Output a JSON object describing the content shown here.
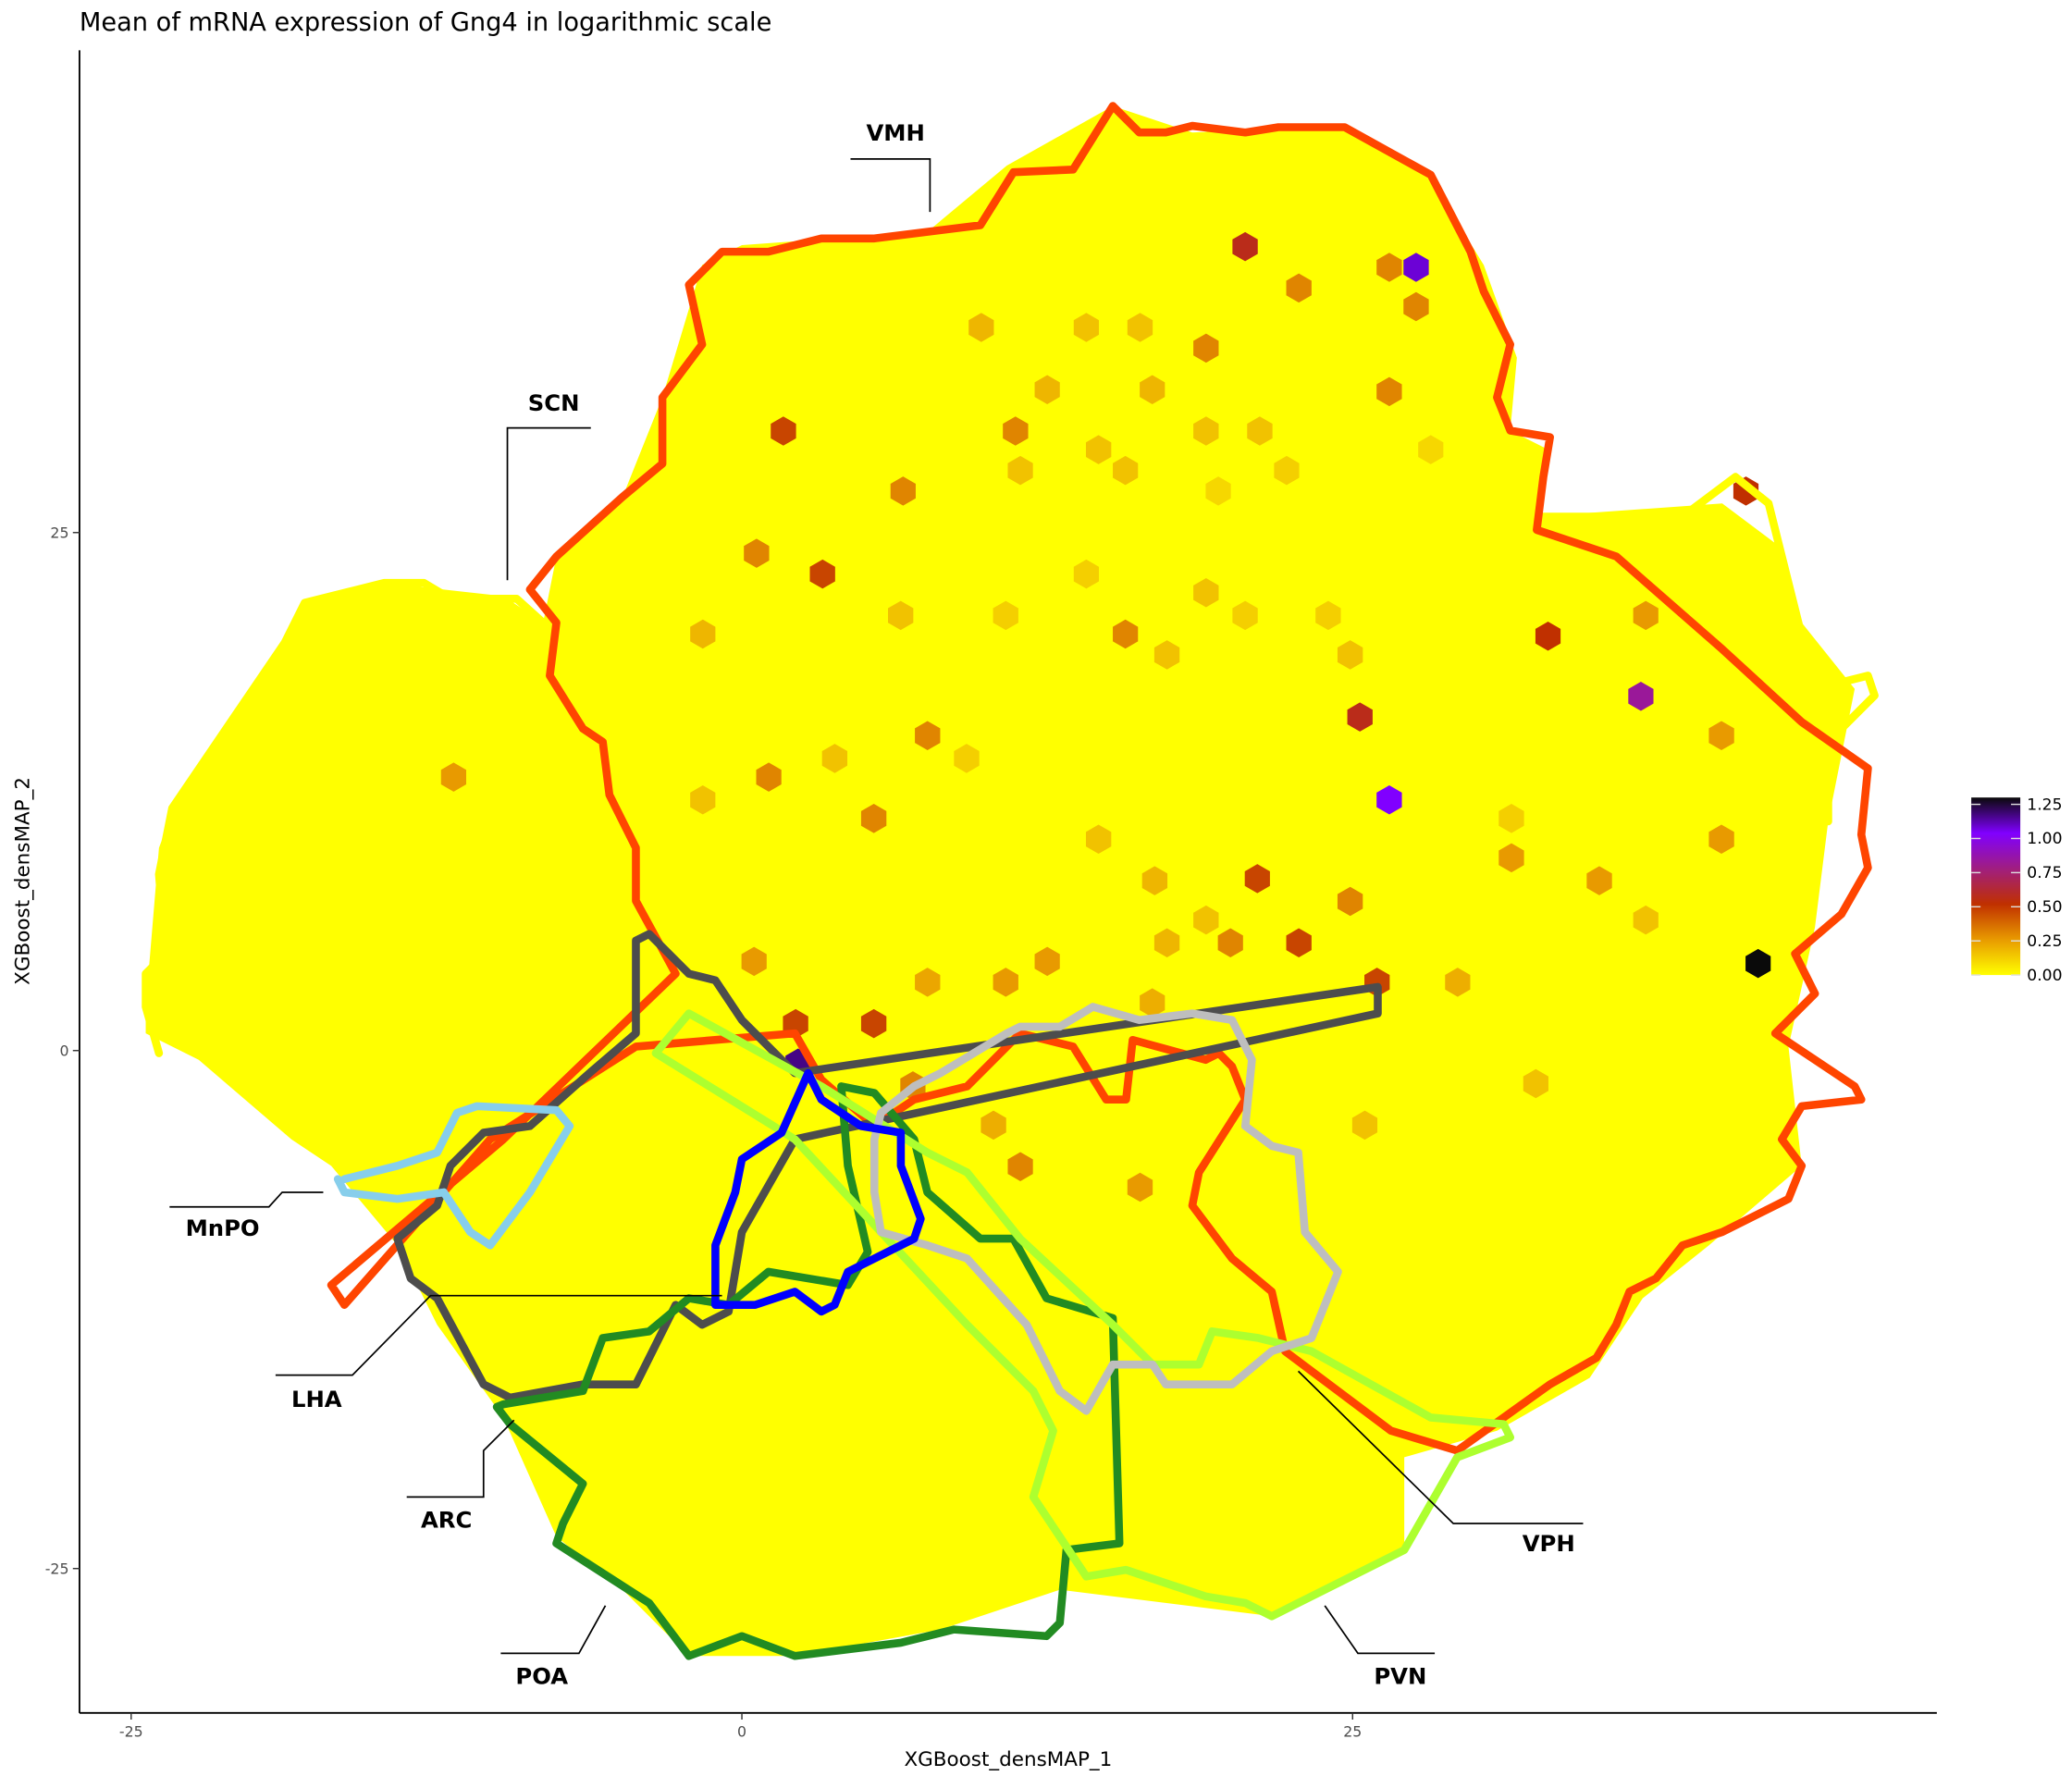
{
  "chart_data": {
    "type": "heatmap",
    "subtype": "hexbin",
    "title": "Mean of mRNA expression of Gng4 in logarithmic scale",
    "xlabel": "XGBoost_densMAP_1",
    "ylabel": "XGBoost_densMAP_2",
    "xticks": [
      -25,
      0,
      25
    ],
    "yticks": [
      25,
      0,
      -25
    ],
    "xlim": [
      -27,
      49
    ],
    "ylim": [
      -32,
      48
    ],
    "grid": false,
    "base_fill": "#FFFF00",
    "colorbar": {
      "ticks": [
        "0.00",
        "0.25",
        "0.50",
        "0.75",
        "1.00",
        "1.25"
      ],
      "range": [
        0,
        1.3
      ],
      "colors": [
        "#FFFF00",
        "#E89A00",
        "#C03000",
        "#A01E80",
        "#8000FF",
        "#0A0A0A"
      ],
      "placement": "right"
    },
    "regions": [
      {
        "label": "VMH",
        "color": "#FF4500"
      },
      {
        "label": "SCN",
        "color": "#FFFF00"
      },
      {
        "label": "MnPO",
        "color": "#87CEEB"
      },
      {
        "label": "LHA",
        "color": "#4D4D4D"
      },
      {
        "label": "ARC",
        "color": "#0000FF"
      },
      {
        "label": "POA",
        "color": "#228B22"
      },
      {
        "label": "PVN",
        "color": "#ADFF2F"
      },
      {
        "label": "VPH",
        "color": "#BEBEBE"
      }
    ],
    "hexes": [
      {
        "x": 41.6,
        "y": 4.2,
        "v": 1.3
      },
      {
        "x": 27.6,
        "y": 37.8,
        "v": 1.05
      },
      {
        "x": 26.5,
        "y": 12.1,
        "v": 1.0
      },
      {
        "x": 36.8,
        "y": 17.1,
        "v": 0.8
      },
      {
        "x": 2.3,
        "y": -0.6,
        "v": 1.15
      },
      {
        "x": 20.6,
        "y": 38.8,
        "v": 0.55
      },
      {
        "x": 41.1,
        "y": 27.0,
        "v": 0.5
      },
      {
        "x": 33.0,
        "y": 20.0,
        "v": 0.5
      },
      {
        "x": 25.3,
        "y": 16.1,
        "v": 0.55
      },
      {
        "x": 1.7,
        "y": 29.9,
        "v": 0.45
      },
      {
        "x": 3.3,
        "y": 23.0,
        "v": 0.45
      },
      {
        "x": 21.1,
        "y": 8.3,
        "v": 0.45
      },
      {
        "x": 22.8,
        "y": 5.2,
        "v": 0.45
      },
      {
        "x": 2.2,
        "y": 1.3,
        "v": 0.45
      },
      {
        "x": 5.4,
        "y": 1.3,
        "v": 0.45
      },
      {
        "x": 26.0,
        "y": 3.3,
        "v": 0.45
      },
      {
        "x": 26.5,
        "y": 37.8,
        "v": 0.3
      },
      {
        "x": 22.8,
        "y": 36.8,
        "v": 0.3
      },
      {
        "x": 27.6,
        "y": 35.9,
        "v": 0.3
      },
      {
        "x": 11.2,
        "y": 29.9,
        "v": 0.3
      },
      {
        "x": 6.6,
        "y": 27.0,
        "v": 0.3
      },
      {
        "x": 26.5,
        "y": 31.8,
        "v": 0.3
      },
      {
        "x": 19.0,
        "y": 33.9,
        "v": 0.3
      },
      {
        "x": 0.6,
        "y": 24.0,
        "v": 0.3
      },
      {
        "x": 15.7,
        "y": 20.1,
        "v": 0.3
      },
      {
        "x": 7.6,
        "y": 15.2,
        "v": 0.3
      },
      {
        "x": 1.1,
        "y": 13.2,
        "v": 0.3
      },
      {
        "x": 5.4,
        "y": 11.2,
        "v": 0.3
      },
      {
        "x": 20.0,
        "y": 5.2,
        "v": 0.3
      },
      {
        "x": 24.9,
        "y": 7.2,
        "v": 0.3
      },
      {
        "x": 40.1,
        "y": 10.2,
        "v": 0.25
      },
      {
        "x": 31.5,
        "y": 9.3,
        "v": 0.25
      },
      {
        "x": 35.1,
        "y": 8.2,
        "v": 0.25
      },
      {
        "x": -11.8,
        "y": 13.2,
        "v": 0.25
      },
      {
        "x": 11.4,
        "y": -5.6,
        "v": 0.3
      },
      {
        "x": 16.3,
        "y": -6.6,
        "v": 0.25
      },
      {
        "x": 29.3,
        "y": 3.3,
        "v": 0.2
      },
      {
        "x": 32.5,
        "y": -1.6,
        "v": 0.15
      },
      {
        "x": 25.5,
        "y": -3.6,
        "v": 0.15
      },
      {
        "x": 40.1,
        "y": 15.2,
        "v": 0.25
      },
      {
        "x": 37.0,
        "y": 21.0,
        "v": 0.25
      },
      {
        "x": 9.8,
        "y": 34.9,
        "v": 0.18
      },
      {
        "x": 14.1,
        "y": 34.9,
        "v": 0.15
      },
      {
        "x": 16.3,
        "y": 34.9,
        "v": 0.15
      },
      {
        "x": 12.5,
        "y": 31.9,
        "v": 0.18
      },
      {
        "x": 16.8,
        "y": 31.9,
        "v": 0.18
      },
      {
        "x": 14.6,
        "y": 29.0,
        "v": 0.15
      },
      {
        "x": 11.4,
        "y": 28.0,
        "v": 0.15
      },
      {
        "x": 19.0,
        "y": 29.9,
        "v": 0.15
      },
      {
        "x": 21.2,
        "y": 29.9,
        "v": 0.15
      },
      {
        "x": 22.3,
        "y": 28.0,
        "v": 0.12
      },
      {
        "x": 15.7,
        "y": 28.0,
        "v": 0.15
      },
      {
        "x": 19.5,
        "y": 27.0,
        "v": 0.1
      },
      {
        "x": 14.1,
        "y": 23.0,
        "v": 0.12
      },
      {
        "x": 6.5,
        "y": 21.0,
        "v": 0.15
      },
      {
        "x": 10.8,
        "y": 21.0,
        "v": 0.12
      },
      {
        "x": 19.0,
        "y": 22.1,
        "v": 0.15
      },
      {
        "x": 20.6,
        "y": 21.0,
        "v": 0.12
      },
      {
        "x": 24.0,
        "y": 21.0,
        "v": 0.12
      },
      {
        "x": -1.6,
        "y": 20.1,
        "v": 0.18
      },
      {
        "x": 17.4,
        "y": 19.1,
        "v": 0.15
      },
      {
        "x": 24.9,
        "y": 19.1,
        "v": 0.15
      },
      {
        "x": 3.8,
        "y": 14.1,
        "v": 0.15
      },
      {
        "x": 9.2,
        "y": 14.1,
        "v": 0.12
      },
      {
        "x": -1.6,
        "y": 12.1,
        "v": 0.15
      },
      {
        "x": 14.6,
        "y": 10.2,
        "v": 0.15
      },
      {
        "x": 16.9,
        "y": 8.2,
        "v": 0.18
      },
      {
        "x": 0.5,
        "y": 4.3,
        "v": 0.25
      },
      {
        "x": 12.5,
        "y": 4.3,
        "v": 0.25
      },
      {
        "x": 17.4,
        "y": 5.2,
        "v": 0.18
      },
      {
        "x": 19.0,
        "y": 6.3,
        "v": 0.15
      },
      {
        "x": 7.6,
        "y": 3.3,
        "v": 0.22
      },
      {
        "x": 10.8,
        "y": 3.3,
        "v": 0.25
      },
      {
        "x": 16.8,
        "y": 2.3,
        "v": 0.2
      },
      {
        "x": 7.0,
        "y": -1.7,
        "v": 0.3
      },
      {
        "x": 10.3,
        "y": -3.6,
        "v": 0.2
      },
      {
        "x": 28.2,
        "y": 29.0,
        "v": 0.1
      },
      {
        "x": 37.0,
        "y": 6.3,
        "v": 0.15
      },
      {
        "x": 31.5,
        "y": 11.2,
        "v": 0.12
      }
    ]
  }
}
